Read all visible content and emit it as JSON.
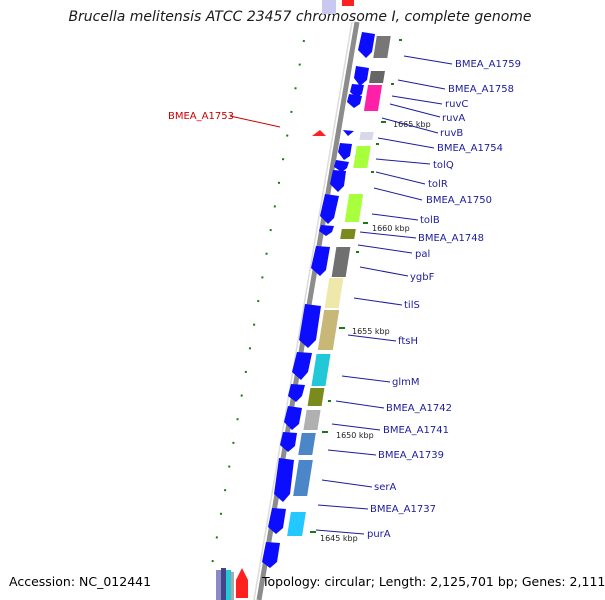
{
  "title": "Brucella melitensis ATCC 23457 chromosome I, complete genome",
  "accession": "Accession: NC_012441",
  "summary": "Topology: circular; Length: 2,125,701 bp; Genes: 2,111",
  "colors": {
    "backbone": "#8c8c8c",
    "gene_arrow": "#0c0cff",
    "label_line": "#1c1c9c",
    "highlight": "#cc0000",
    "tick": "#1a7a1a"
  },
  "genes": [
    {
      "name": "BMEA_A1759"
    },
    {
      "name": "BMEA_A1758"
    },
    {
      "name": "ruvC"
    },
    {
      "name": "ruvA"
    },
    {
      "name": "ruvB"
    },
    {
      "name": "BMEA_A1754"
    },
    {
      "name": "tolQ"
    },
    {
      "name": "tolR"
    },
    {
      "name": "BMEA_A1750"
    },
    {
      "name": "tolB"
    },
    {
      "name": "BMEA_A1748"
    },
    {
      "name": "pal"
    },
    {
      "name": "ygbF"
    },
    {
      "name": "tilS"
    },
    {
      "name": "ftsH"
    },
    {
      "name": "glmM"
    },
    {
      "name": "BMEA_A1742"
    },
    {
      "name": "BMEA_A1741"
    },
    {
      "name": "BMEA_A1739"
    },
    {
      "name": "serA"
    },
    {
      "name": "BMEA_A1737"
    },
    {
      "name": "purA"
    }
  ],
  "highlighted_gene": {
    "name": "BMEA_A1753"
  },
  "position_markers": [
    {
      "label": "1665 kbp"
    },
    {
      "label": "1660 kbp"
    },
    {
      "label": "1655 kbp"
    },
    {
      "label": "1650 kbp"
    },
    {
      "label": "1645 kbp"
    }
  ]
}
